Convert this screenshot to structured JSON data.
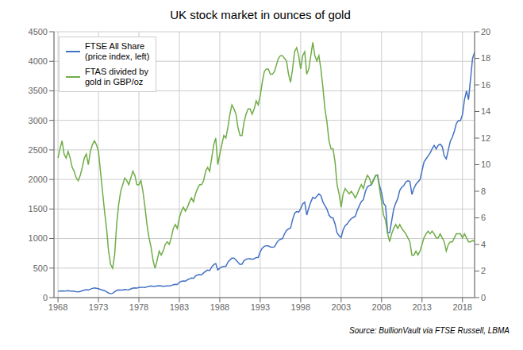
{
  "chart_data": {
    "type": "line",
    "title": "UK stock market in ounces of gold",
    "annotations": [
      "Source: BullionVault via FTSE Russell, LBMA"
    ],
    "x": [
      1968,
      1968.25,
      1968.5,
      1968.75,
      1969,
      1969.25,
      1969.5,
      1969.75,
      1970,
      1970.25,
      1970.5,
      1970.75,
      1971,
      1971.25,
      1971.5,
      1971.75,
      1972,
      1972.25,
      1972.5,
      1972.75,
      1973,
      1973.25,
      1973.5,
      1973.75,
      1974,
      1974.25,
      1974.5,
      1974.75,
      1975,
      1975.25,
      1975.5,
      1975.75,
      1976,
      1976.25,
      1976.5,
      1976.75,
      1977,
      1977.25,
      1977.5,
      1977.75,
      1978,
      1978.25,
      1978.5,
      1978.75,
      1979,
      1979.25,
      1979.5,
      1979.75,
      1980,
      1980.25,
      1980.5,
      1980.75,
      1981,
      1981.25,
      1981.5,
      1981.75,
      1982,
      1982.25,
      1982.5,
      1982.75,
      1983,
      1983.25,
      1983.5,
      1983.75,
      1984,
      1984.25,
      1984.5,
      1984.75,
      1985,
      1985.25,
      1985.5,
      1985.75,
      1986,
      1986.25,
      1986.5,
      1986.75,
      1987,
      1987.25,
      1987.5,
      1987.75,
      1988,
      1988.25,
      1988.5,
      1988.75,
      1989,
      1989.25,
      1989.5,
      1989.75,
      1990,
      1990.25,
      1990.5,
      1990.75,
      1991,
      1991.25,
      1991.5,
      1991.75,
      1992,
      1992.25,
      1992.5,
      1992.75,
      1993,
      1993.25,
      1993.5,
      1993.75,
      1994,
      1994.25,
      1994.5,
      1994.75,
      1995,
      1995.25,
      1995.5,
      1995.75,
      1996,
      1996.25,
      1996.5,
      1996.75,
      1997,
      1997.25,
      1997.5,
      1997.75,
      1998,
      1998.25,
      1998.5,
      1998.75,
      1999,
      1999.25,
      1999.5,
      1999.75,
      2000,
      2000.25,
      2000.5,
      2000.75,
      2001,
      2001.25,
      2001.5,
      2001.75,
      2002,
      2002.25,
      2002.5,
      2002.75,
      2003,
      2003.25,
      2003.5,
      2003.75,
      2004,
      2004.25,
      2004.5,
      2004.75,
      2005,
      2005.25,
      2005.5,
      2005.75,
      2006,
      2006.25,
      2006.5,
      2006.75,
      2007,
      2007.25,
      2007.5,
      2007.75,
      2008,
      2008.25,
      2008.5,
      2008.75,
      2009,
      2009.25,
      2009.5,
      2009.75,
      2010,
      2010.25,
      2010.5,
      2010.75,
      2011,
      2011.25,
      2011.5,
      2011.75,
      2012,
      2012.25,
      2012.5,
      2012.75,
      2013,
      2013.25,
      2013.5,
      2013.75,
      2014,
      2014.25,
      2014.5,
      2014.75,
      2015,
      2015.25,
      2015.5,
      2015.75,
      2016,
      2016.25,
      2016.5,
      2016.75,
      2017,
      2017.25,
      2017.5,
      2017.75,
      2018,
      2018.25,
      2018.5,
      2018.75,
      2019,
      2019.25,
      2019.5
    ],
    "series": [
      {
        "name": "FTSE All Share\n(price index, left)",
        "color": "#4472c4",
        "values": [
          107,
          110,
          114,
          112,
          113,
          116,
          112,
          110,
          106,
          100,
          98,
          103,
          118,
          128,
          133,
          128,
          143,
          156,
          163,
          158,
          152,
          138,
          128,
          118,
          98,
          78,
          66,
          72,
          98,
          122,
          132,
          128,
          128,
          138,
          133,
          130,
          148,
          162,
          165,
          162,
          170,
          176,
          173,
          172,
          183,
          192,
          198,
          193,
          193,
          198,
          203,
          198,
          193,
          196,
          198,
          198,
          203,
          218,
          225,
          222,
          258,
          275,
          282,
          278,
          302,
          317,
          332,
          327,
          367,
          382,
          388,
          387,
          418,
          447,
          465,
          458,
          518,
          558,
          577,
          468,
          498,
          518,
          532,
          528,
          598,
          637,
          668,
          668,
          638,
          598,
          562,
          568,
          627,
          647,
          657,
          657,
          647,
          657,
          677,
          677,
          777,
          838,
          868,
          878,
          877,
          857,
          852,
          858,
          918,
          968,
          988,
          998,
          1078,
          1138,
          1162,
          1178,
          1318,
          1428,
          1457,
          1447,
          1507,
          1587,
          1617,
          1397,
          1517,
          1617,
          1697,
          1677,
          1717,
          1757,
          1727,
          1617,
          1557,
          1497,
          1397,
          1357,
          1347,
          1247,
          1097,
          1047,
          1017,
          1147,
          1217,
          1247,
          1297,
          1337,
          1357,
          1377,
          1477,
          1557,
          1627,
          1657,
          1797,
          1877,
          1897,
          1917,
          1997,
          2057,
          2077,
          1897,
          1777,
          1597,
          1547,
          1097,
          1097,
          1297,
          1497,
          1597,
          1677,
          1817,
          1867,
          1897,
          1957,
          1977,
          1967,
          1747,
          1847,
          1917,
          1957,
          1997,
          2147,
          2297,
          2347,
          2397,
          2447,
          2517,
          2577,
          2517,
          2577,
          2597,
          2557,
          2397,
          2347,
          2497,
          2647,
          2717,
          2817,
          2947,
          2997,
          2997,
          3097,
          3350,
          3500,
          3350,
          3700,
          4050,
          4150
        ]
      },
      {
        "name": "FTAS divided by\ngold in GBP/oz",
        "color": "#70ad47",
        "axis": "y2",
        "values": [
          10.5,
          11.2,
          11.8,
          10.8,
          10.5,
          11.0,
          10.5,
          9.8,
          9.5,
          9.0,
          8.8,
          9.2,
          9.8,
          10.5,
          10.8,
          10.0,
          11.0,
          11.5,
          11.8,
          11.5,
          11.0,
          9.5,
          8.0,
          6.5,
          5.2,
          3.5,
          2.5,
          2.2,
          3.2,
          5.5,
          7.0,
          8.0,
          8.5,
          9.0,
          8.8,
          8.5,
          9.0,
          9.5,
          9.2,
          8.5,
          8.5,
          8.8,
          8.0,
          6.8,
          5.5,
          4.5,
          3.8,
          2.8,
          2.2,
          2.8,
          3.5,
          3.2,
          3.5,
          4.0,
          4.2,
          4.0,
          4.5,
          5.2,
          5.5,
          5.2,
          6.0,
          6.5,
          6.8,
          6.5,
          6.8,
          7.2,
          7.5,
          7.2,
          7.8,
          8.2,
          8.5,
          8.5,
          8.8,
          9.5,
          9.8,
          9.5,
          10.5,
          11.5,
          12.0,
          10.0,
          10.8,
          11.5,
          12.2,
          12.0,
          12.8,
          13.8,
          14.5,
          14.2,
          13.8,
          12.8,
          12.2,
          12.2,
          13.2,
          13.8,
          14.2,
          14.2,
          13.8,
          14.2,
          14.8,
          14.5,
          15.2,
          16.2,
          17.0,
          17.2,
          17.2,
          16.8,
          16.8,
          17.0,
          17.5,
          18.0,
          18.2,
          18.2,
          18.0,
          17.8,
          16.8,
          16.2,
          17.2,
          18.5,
          18.8,
          18.2,
          17.2,
          18.2,
          18.5,
          16.8,
          17.2,
          18.2,
          19.2,
          18.2,
          17.8,
          18.2,
          17.2,
          15.8,
          14.2,
          13.2,
          11.8,
          11.2,
          11.2,
          10.2,
          8.5,
          7.8,
          6.8,
          7.8,
          8.2,
          8.0,
          7.8,
          8.0,
          7.8,
          7.5,
          7.8,
          8.2,
          8.5,
          8.2,
          8.8,
          9.2,
          9.0,
          8.5,
          8.8,
          9.2,
          9.2,
          8.2,
          7.2,
          6.2,
          5.8,
          4.8,
          4.2,
          4.8,
          5.2,
          5.5,
          5.2,
          5.5,
          5.2,
          5.0,
          4.8,
          4.5,
          4.2,
          3.2,
          3.2,
          3.5,
          3.2,
          3.5,
          4.0,
          4.5,
          4.8,
          5.0,
          4.8,
          5.0,
          4.8,
          4.5,
          4.5,
          4.8,
          4.5,
          4.2,
          3.5,
          4.0,
          4.2,
          4.2,
          4.5,
          4.8,
          4.8,
          4.8,
          4.5,
          4.8,
          4.5,
          4.2,
          4.2,
          4.3,
          4.2
        ]
      }
    ],
    "xlim": [
      1967.5,
      2019.5
    ],
    "xticks": [
      1968,
      1973,
      1978,
      1983,
      1988,
      1993,
      1998,
      2003,
      2008,
      2013,
      2018
    ],
    "ylim": [
      0,
      4500
    ],
    "yticks": [
      0,
      500,
      1000,
      1500,
      2000,
      2500,
      3000,
      3500,
      4000,
      4500
    ],
    "y2lim": [
      0,
      20
    ],
    "y2ticks": [
      0,
      2,
      4,
      6,
      8,
      10,
      12,
      14,
      16,
      18,
      20
    ],
    "grid": true,
    "legend": "upper left"
  }
}
